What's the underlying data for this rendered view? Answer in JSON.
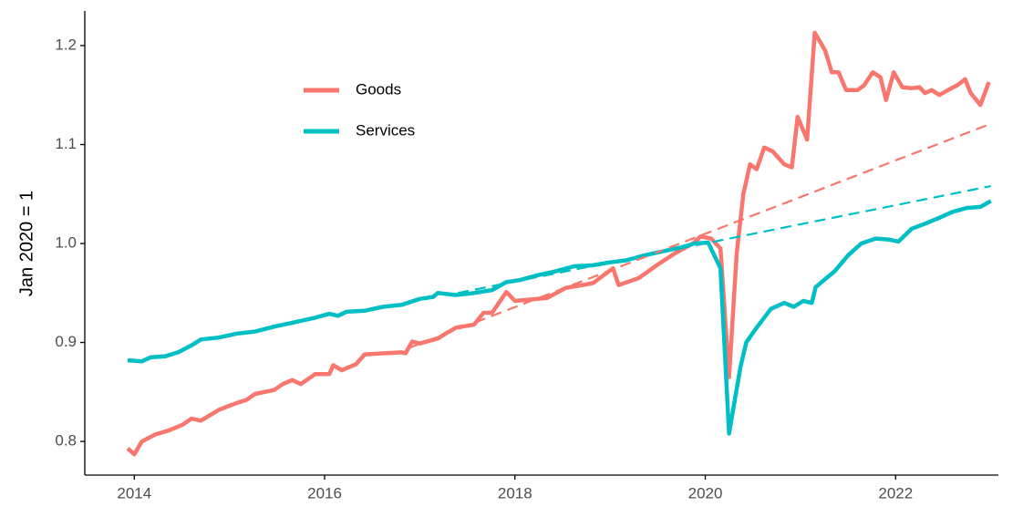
{
  "chart_data": {
    "type": "line",
    "ylabel": "Jan 2020 = 1",
    "xlim": [
      2013.48,
      2023.08
    ],
    "xticks": [
      2014,
      2016,
      2018,
      2020,
      2022
    ],
    "ylim": [
      0.766,
      1.235
    ],
    "yticks": [
      0.8,
      0.9,
      {
        "value": 1.0,
        "label": "1.0"
      },
      1.1,
      1.2
    ],
    "grid": false,
    "legend": "top-left",
    "series": [
      {
        "name": "Goods",
        "color": "#F8766D",
        "linetype": "solid",
        "x": [
          2013.93,
          2014.0,
          2014.08,
          2014.22,
          2014.36,
          2014.51,
          2014.6,
          2014.7,
          2014.89,
          2015.08,
          2015.18,
          2015.27,
          2015.47,
          2015.56,
          2015.66,
          2015.75,
          2015.9,
          2016.05,
          2016.09,
          2016.18,
          2016.33,
          2016.42,
          2016.61,
          2016.81,
          2016.85,
          2016.92,
          2017.0,
          2017.19,
          2017.29,
          2017.38,
          2017.57,
          2017.67,
          2017.76,
          2017.91,
          2018.0,
          2018.34,
          2018.53,
          2018.82,
          2019.03,
          2019.09,
          2019.3,
          2019.49,
          2019.68,
          2019.87,
          2019.95,
          2020.06,
          2020.16,
          2020.25,
          2020.33,
          2020.4,
          2020.47,
          2020.54,
          2020.62,
          2020.71,
          2020.83,
          2020.91,
          2020.97,
          2021.07,
          2021.15,
          2021.26,
          2021.33,
          2021.4,
          2021.48,
          2021.6,
          2021.67,
          2021.76,
          2021.84,
          2021.9,
          2021.98,
          2022.07,
          2022.17,
          2022.25,
          2022.31,
          2022.38,
          2022.46,
          2022.55,
          2022.65,
          2022.73,
          2022.79,
          2022.89,
          2022.98
        ],
        "values": [
          0.793,
          0.787,
          0.8,
          0.807,
          0.811,
          0.817,
          0.823,
          0.821,
          0.832,
          0.839,
          0.842,
          0.848,
          0.852,
          0.858,
          0.862,
          0.858,
          0.868,
          0.868,
          0.877,
          0.872,
          0.878,
          0.888,
          0.889,
          0.89,
          0.889,
          0.901,
          0.899,
          0.904,
          0.91,
          0.915,
          0.918,
          0.93,
          0.93,
          0.951,
          0.942,
          0.945,
          0.955,
          0.96,
          0.975,
          0.958,
          0.965,
          0.978,
          0.99,
          1.0,
          1.007,
          1.005,
          0.995,
          0.865,
          0.99,
          1.05,
          1.08,
          1.075,
          1.097,
          1.093,
          1.08,
          1.077,
          1.128,
          1.105,
          1.213,
          1.195,
          1.173,
          1.173,
          1.155,
          1.155,
          1.16,
          1.173,
          1.168,
          1.145,
          1.173,
          1.158,
          1.157,
          1.158,
          1.152,
          1.155,
          1.15,
          1.155,
          1.16,
          1.166,
          1.152,
          1.14,
          1.163
        ]
      },
      {
        "name": "Services",
        "color": "#00BFC4",
        "linetype": "solid",
        "x": [
          2013.93,
          2014.08,
          2014.17,
          2014.32,
          2014.46,
          2014.6,
          2014.7,
          2014.89,
          2015.08,
          2015.27,
          2015.47,
          2015.66,
          2015.9,
          2016.05,
          2016.14,
          2016.23,
          2016.42,
          2016.61,
          2016.81,
          2017.0,
          2017.14,
          2017.19,
          2017.38,
          2017.57,
          2017.76,
          2017.91,
          2018.05,
          2018.24,
          2018.43,
          2018.62,
          2018.82,
          2019.0,
          2019.17,
          2019.36,
          2019.55,
          2019.74,
          2019.89,
          2020.03,
          2020.16,
          2020.25,
          2020.37,
          2020.43,
          2020.54,
          2020.69,
          2020.83,
          2020.93,
          2021.03,
          2021.12,
          2021.16,
          2021.36,
          2021.5,
          2021.64,
          2021.79,
          2021.93,
          2022.03,
          2022.17,
          2022.31,
          2022.46,
          2022.6,
          2022.75,
          2022.89,
          2023.0
        ],
        "values": [
          0.882,
          0.881,
          0.885,
          0.886,
          0.89,
          0.897,
          0.903,
          0.905,
          0.909,
          0.911,
          0.916,
          0.92,
          0.925,
          0.929,
          0.927,
          0.931,
          0.932,
          0.936,
          0.938,
          0.944,
          0.946,
          0.95,
          0.948,
          0.95,
          0.953,
          0.961,
          0.963,
          0.968,
          0.972,
          0.977,
          0.978,
          0.981,
          0.983,
          0.988,
          0.992,
          0.996,
          1.0,
          1.001,
          0.975,
          0.808,
          0.875,
          0.9,
          0.915,
          0.934,
          0.94,
          0.936,
          0.942,
          0.94,
          0.956,
          0.972,
          0.988,
          1.0,
          1.005,
          1.004,
          1.002,
          1.015,
          1.02,
          1.026,
          1.032,
          1.036,
          1.037,
          1.043
        ]
      },
      {
        "color": "#F8766D",
        "linetype": "dashed",
        "x": [
          2016.9,
          2023.0
        ],
        "values": [
          0.895,
          1.121
        ]
      },
      {
        "color": "#00BFC4",
        "linetype": "dashed",
        "x": [
          2017.4,
          2023.0
        ],
        "values": [
          0.95,
          1.058
        ]
      }
    ]
  }
}
